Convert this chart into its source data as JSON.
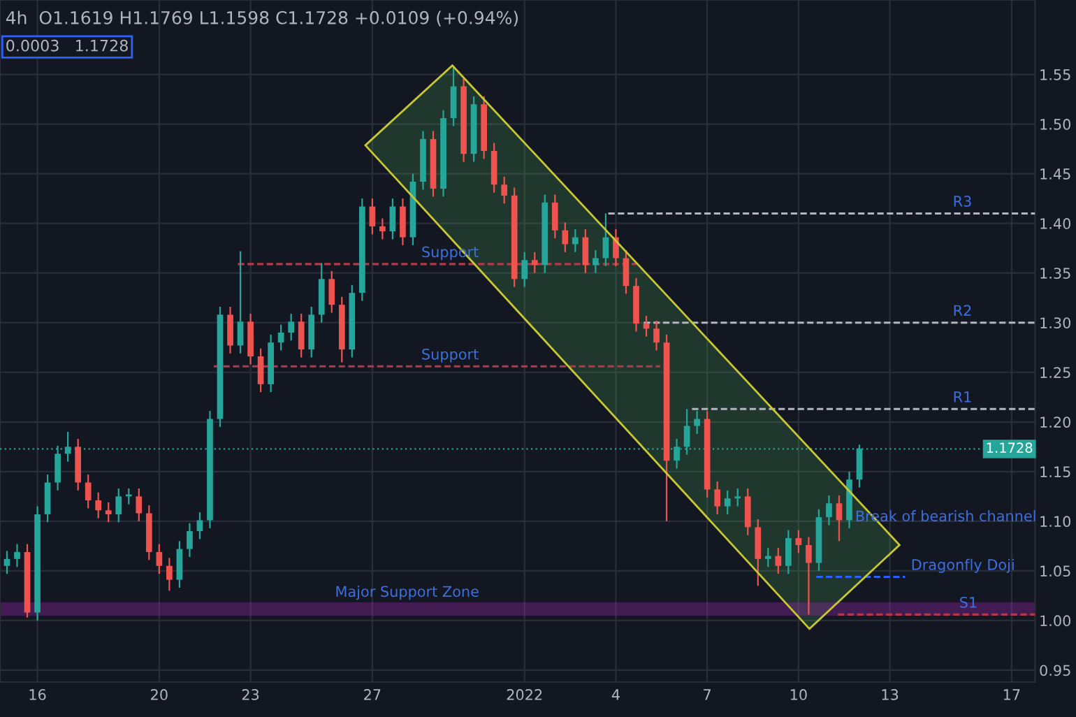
{
  "chart_data": {
    "type": "candlestick",
    "title": "4h  O1.1619 H1.1769 L1.1598 C1.1728 +0.0109 (+0.94%)",
    "subtitle": "0.0003   1.1728",
    "x": [
      "2021-12-15T00:00",
      "2021-12-15T08:00",
      "2021-12-15T16:00",
      "2021-12-16T00:00",
      "2021-12-16T08:00",
      "2021-12-16T16:00",
      "2021-12-17T00:00",
      "2021-12-17T08:00",
      "2021-12-17T16:00",
      "2021-12-18T00:00",
      "2021-12-18T08:00",
      "2021-12-18T16:00",
      "2021-12-19T00:00",
      "2021-12-19T08:00",
      "2021-12-19T16:00",
      "2021-12-20T00:00",
      "2021-12-20T08:00",
      "2021-12-20T16:00",
      "2021-12-21T00:00",
      "2021-12-21T08:00",
      "2021-12-21T16:00",
      "2021-12-22T00:00",
      "2021-12-22T08:00",
      "2021-12-22T16:00",
      "2021-12-23T00:00",
      "2021-12-23T08:00",
      "2021-12-23T16:00",
      "2021-12-24T00:00",
      "2021-12-24T08:00",
      "2021-12-24T16:00",
      "2021-12-25T00:00",
      "2021-12-25T08:00",
      "2021-12-25T16:00",
      "2021-12-26T00:00",
      "2021-12-26T08:00",
      "2021-12-26T16:00",
      "2021-12-27T00:00",
      "2021-12-27T08:00",
      "2021-12-27T16:00",
      "2021-12-28T00:00",
      "2021-12-28T08:00",
      "2021-12-28T16:00",
      "2021-12-29T00:00",
      "2021-12-29T08:00",
      "2021-12-29T16:00",
      "2021-12-30T00:00",
      "2021-12-30T08:00",
      "2021-12-30T16:00",
      "2021-12-31T00:00",
      "2021-12-31T08:00",
      "2021-12-31T16:00",
      "2022-01-01T00:00",
      "2022-01-01T08:00",
      "2022-01-01T16:00",
      "2022-01-02T00:00",
      "2022-01-02T08:00",
      "2022-01-02T16:00",
      "2022-01-03T00:00",
      "2022-01-03T08:00",
      "2022-01-03T16:00",
      "2022-01-04T00:00",
      "2022-01-04T08:00",
      "2022-01-04T16:00",
      "2022-01-05T00:00",
      "2022-01-05T08:00",
      "2022-01-05T16:00",
      "2022-01-06T00:00",
      "2022-01-06T08:00",
      "2022-01-06T16:00",
      "2022-01-07T00:00",
      "2022-01-07T08:00",
      "2022-01-07T16:00",
      "2022-01-08T00:00",
      "2022-01-08T08:00",
      "2022-01-08T16:00",
      "2022-01-09T00:00",
      "2022-01-09T08:00",
      "2022-01-09T16:00",
      "2022-01-10T00:00",
      "2022-01-10T08:00",
      "2022-01-10T16:00",
      "2022-01-11T00:00",
      "2022-01-11T08:00",
      "2022-01-11T16:00",
      "2022-01-12T00:00"
    ],
    "ohlc": [
      [
        1.055,
        1.07,
        1.047,
        1.062
      ],
      [
        1.062,
        1.077,
        1.054,
        1.069
      ],
      [
        1.069,
        1.077,
        1.003,
        1.008
      ],
      [
        1.008,
        1.115,
        1.0,
        1.107
      ],
      [
        1.107,
        1.147,
        1.099,
        1.139
      ],
      [
        1.139,
        1.176,
        1.131,
        1.168
      ],
      [
        1.168,
        1.19,
        1.16,
        1.175
      ],
      [
        1.175,
        1.183,
        1.131,
        1.139
      ],
      [
        1.139,
        1.147,
        1.113,
        1.121
      ],
      [
        1.121,
        1.129,
        1.103,
        1.111
      ],
      [
        1.111,
        1.119,
        1.099,
        1.107
      ],
      [
        1.107,
        1.133,
        1.099,
        1.125
      ],
      [
        1.125,
        1.133,
        1.117,
        1.127
      ],
      [
        1.125,
        1.133,
        1.1,
        1.108
      ],
      [
        1.108,
        1.116,
        1.061,
        1.069
      ],
      [
        1.069,
        1.077,
        1.047,
        1.055
      ],
      [
        1.055,
        1.063,
        1.03,
        1.041
      ],
      [
        1.041,
        1.08,
        1.033,
        1.072
      ],
      [
        1.072,
        1.098,
        1.064,
        1.09
      ],
      [
        1.09,
        1.109,
        1.082,
        1.101
      ],
      [
        1.101,
        1.211,
        1.093,
        1.203
      ],
      [
        1.203,
        1.316,
        1.195,
        1.308
      ],
      [
        1.308,
        1.316,
        1.269,
        1.277
      ],
      [
        1.277,
        1.372,
        1.269,
        1.301
      ],
      [
        1.301,
        1.309,
        1.258,
        1.266
      ],
      [
        1.266,
        1.274,
        1.23,
        1.238
      ],
      [
        1.238,
        1.288,
        1.23,
        1.28
      ],
      [
        1.28,
        1.298,
        1.272,
        1.29
      ],
      [
        1.29,
        1.309,
        1.282,
        1.301
      ],
      [
        1.301,
        1.309,
        1.265,
        1.273
      ],
      [
        1.273,
        1.316,
        1.265,
        1.308
      ],
      [
        1.308,
        1.36,
        1.3,
        1.344
      ],
      [
        1.344,
        1.352,
        1.31,
        1.318
      ],
      [
        1.318,
        1.326,
        1.26,
        1.273
      ],
      [
        1.273,
        1.338,
        1.265,
        1.33
      ],
      [
        1.33,
        1.425,
        1.322,
        1.417
      ],
      [
        1.417,
        1.425,
        1.389,
        1.397
      ],
      [
        1.397,
        1.405,
        1.384,
        1.392
      ],
      [
        1.392,
        1.425,
        1.384,
        1.417
      ],
      [
        1.417,
        1.425,
        1.378,
        1.386
      ],
      [
        1.386,
        1.45,
        1.378,
        1.442
      ],
      [
        1.442,
        1.493,
        1.434,
        1.485
      ],
      [
        1.485,
        1.493,
        1.427,
        1.435
      ],
      [
        1.435,
        1.514,
        1.427,
        1.506
      ],
      [
        1.506,
        1.559,
        1.498,
        1.538
      ],
      [
        1.538,
        1.546,
        1.462,
        1.47
      ],
      [
        1.47,
        1.528,
        1.462,
        1.52
      ],
      [
        1.52,
        1.528,
        1.465,
        1.473
      ],
      [
        1.473,
        1.481,
        1.431,
        1.439
      ],
      [
        1.439,
        1.447,
        1.42,
        1.428
      ],
      [
        1.428,
        1.436,
        1.336,
        1.344
      ],
      [
        1.344,
        1.371,
        1.336,
        1.363
      ],
      [
        1.363,
        1.371,
        1.35,
        1.358
      ],
      [
        1.358,
        1.429,
        1.35,
        1.421
      ],
      [
        1.421,
        1.429,
        1.385,
        1.393
      ],
      [
        1.393,
        1.401,
        1.371,
        1.379
      ],
      [
        1.379,
        1.394,
        1.371,
        1.386
      ],
      [
        1.386,
        1.394,
        1.35,
        1.358
      ],
      [
        1.358,
        1.373,
        1.35,
        1.365
      ],
      [
        1.365,
        1.41,
        1.357,
        1.386
      ],
      [
        1.386,
        1.394,
        1.357,
        1.365
      ],
      [
        1.365,
        1.373,
        1.329,
        1.337
      ],
      [
        1.337,
        1.345,
        1.291,
        1.299
      ],
      [
        1.299,
        1.307,
        1.286,
        1.294
      ],
      [
        1.294,
        1.302,
        1.272,
        1.28
      ],
      [
        1.28,
        1.288,
        1.1,
        1.161
      ],
      [
        1.161,
        1.183,
        1.153,
        1.175
      ],
      [
        1.175,
        1.213,
        1.167,
        1.196
      ],
      [
        1.196,
        1.211,
        1.188,
        1.203
      ],
      [
        1.203,
        1.211,
        1.124,
        1.132
      ],
      [
        1.132,
        1.14,
        1.107,
        1.115
      ],
      [
        1.115,
        1.131,
        1.107,
        1.123
      ],
      [
        1.123,
        1.133,
        1.115,
        1.125
      ],
      [
        1.125,
        1.133,
        1.086,
        1.094
      ],
      [
        1.094,
        1.102,
        1.035,
        1.062
      ],
      [
        1.062,
        1.073,
        1.054,
        1.065
      ],
      [
        1.065,
        1.073,
        1.047,
        1.055
      ],
      [
        1.055,
        1.091,
        1.047,
        1.083
      ],
      [
        1.083,
        1.091,
        1.068,
        1.076
      ],
      [
        1.076,
        1.084,
        1.006,
        1.058
      ],
      [
        1.058,
        1.112,
        1.05,
        1.104
      ],
      [
        1.104,
        1.126,
        1.096,
        1.118
      ],
      [
        1.118,
        1.126,
        1.08,
        1.101
      ],
      [
        1.101,
        1.15,
        1.093,
        1.142
      ],
      [
        1.142,
        1.177,
        1.134,
        1.173
      ]
    ],
    "colors": [
      "#26a69a",
      "#26a69a",
      "#ef5350",
      "#26a69a",
      "#26a69a",
      "#26a69a",
      "#26a69a",
      "#ef5350",
      "#ef5350",
      "#ef5350",
      "#ef5350",
      "#26a69a",
      "#26a69a",
      "#ef5350",
      "#ef5350",
      "#ef5350",
      "#ef5350",
      "#26a69a",
      "#26a69a",
      "#26a69a",
      "#26a69a",
      "#26a69a",
      "#ef5350",
      "#26a69a",
      "#ef5350",
      "#ef5350",
      "#26a69a",
      "#26a69a",
      "#26a69a",
      "#ef5350",
      "#26a69a",
      "#26a69a",
      "#ef5350",
      "#ef5350",
      "#26a69a",
      "#26a69a",
      "#ef5350",
      "#ef5350",
      "#26a69a",
      "#ef5350",
      "#26a69a",
      "#26a69a",
      "#ef5350",
      "#26a69a",
      "#26a69a",
      "#ef5350",
      "#26a69a",
      "#ef5350",
      "#ef5350",
      "#ef5350",
      "#ef5350",
      "#26a69a",
      "#ef5350",
      "#26a69a",
      "#ef5350",
      "#ef5350",
      "#26a69a",
      "#ef5350",
      "#26a69a",
      "#26a69a",
      "#ef5350",
      "#ef5350",
      "#ef5350",
      "#ef5350",
      "#ef5350",
      "#ef5350",
      "#26a69a",
      "#26a69a",
      "#26a69a",
      "#ef5350",
      "#ef5350",
      "#26a69a",
      "#26a69a",
      "#ef5350",
      "#ef5350",
      "#26a69a",
      "#ef5350",
      "#26a69a",
      "#ef5350",
      "#ef5350",
      "#26a69a",
      "#26a69a",
      "#ef5350",
      "#26a69a",
      "#26a69a"
    ],
    "series": [
      {
        "type": "line",
        "x": [
          "2022-01-03T18:00",
          "2022-01-17T18:30"
        ],
        "values": [
          1.41,
          1.41
        ],
        "color": "#b2b5be",
        "line_style": "dashed"
      },
      {
        "type": "line",
        "x": [
          "2022-01-04T22:00",
          "2022-01-17T18:30"
        ],
        "values": [
          1.3,
          1.3
        ],
        "color": "#b2b5be",
        "line_style": "dashed"
      },
      {
        "type": "line",
        "x": [
          "2022-01-06T12:00",
          "2022-01-17T18:30"
        ],
        "values": [
          1.213,
          1.213
        ],
        "color": "#b2b5be",
        "line_style": "dashed"
      },
      {
        "type": "line",
        "x": [
          "2022-01-11T07:00",
          "2022-01-17T18:30"
        ],
        "values": [
          1.006,
          1.006
        ],
        "color": "#b23a48",
        "line_style": "dashed"
      },
      {
        "type": "line",
        "x": [
          "2021-12-22T14:00",
          "2022-01-04T16:00"
        ],
        "values": [
          1.359,
          1.359
        ],
        "color": "#b23a48",
        "line_style": "dashed"
      },
      {
        "type": "line",
        "x": [
          "2021-12-21T19:00",
          "2022-01-05T11:00"
        ],
        "values": [
          1.256,
          1.256
        ],
        "color": "#b23a48",
        "line_style": "dashed"
      },
      {
        "type": "line",
        "x": [
          "2022-01-10T14:00",
          "2022-01-13T12:00"
        ],
        "values": [
          1.044,
          1.044
        ],
        "color": "#2962ff",
        "line_style": "dashed"
      }
    ],
    "ref_lines": [
      {
        "axis": "y",
        "value": 1.1728,
        "label": "1.1728",
        "color": "#26a69a",
        "line_style": "dotted"
      }
    ],
    "bands": [
      {
        "axis": "y",
        "from": 1.006,
        "to": 1.017,
        "color": "#9c27b0"
      }
    ],
    "annotations": [
      {
        "text": "R3",
        "x": "2022-01-14T21:00",
        "y": 1.41
      },
      {
        "text": "R2",
        "x": "2022-01-14T21:00",
        "y": 1.3
      },
      {
        "text": "R1",
        "x": "2022-01-14T21:00",
        "y": 1.213
      },
      {
        "text": "S1",
        "x": "2022-01-15T02:00",
        "y": 1.006
      },
      {
        "text": "Support",
        "x": "2021-12-28T10:00",
        "y": 1.359
      },
      {
        "text": "Support",
        "x": "2021-12-28T10:00",
        "y": 1.256
      },
      {
        "text": "Break of bearish channel",
        "x": "2022-01-11T16:00",
        "y": 1.093
      },
      {
        "text": "Major Support Zone",
        "x": "2021-12-25T14:00",
        "y": 1.017
      },
      {
        "text": "Dragonfly Doji",
        "x": "2022-01-13T12:00",
        "y": 1.044
      }
    ],
    "xlim": [
      "2021-12-14T18:30",
      "2022-01-17T18:30"
    ],
    "xticks": [
      {
        "value": "2021-12-16",
        "label": "16"
      },
      {
        "value": "2021-12-20",
        "label": "20"
      },
      {
        "value": "2021-12-23",
        "label": "23"
      },
      {
        "value": "2021-12-27",
        "label": "27"
      },
      {
        "value": "2022-01-01",
        "label": "2022"
      },
      {
        "value": "2022-01-04",
        "label": "4"
      },
      {
        "value": "2022-01-07",
        "label": "7"
      },
      {
        "value": "2022-01-10",
        "label": "10"
      },
      {
        "value": "2022-01-13",
        "label": "13"
      },
      {
        "value": "2022-01-17",
        "label": "17"
      }
    ],
    "ylim": [
      0.938,
      1.625
    ],
    "yticks": [
      0.95,
      {
        "value": 1.0,
        "label": "1.00"
      },
      1.05,
      {
        "value": 1.1,
        "label": "1.10"
      },
      1.15,
      {
        "value": 1.2,
        "label": "1.20"
      },
      1.25,
      {
        "value": 1.3,
        "label": "1.30"
      },
      1.35,
      {
        "value": 1.4,
        "label": "1.40"
      },
      1.45,
      {
        "value": 1.5,
        "label": "1.50"
      },
      1.55
    ],
    "grid": true,
    "legend": false
  }
}
